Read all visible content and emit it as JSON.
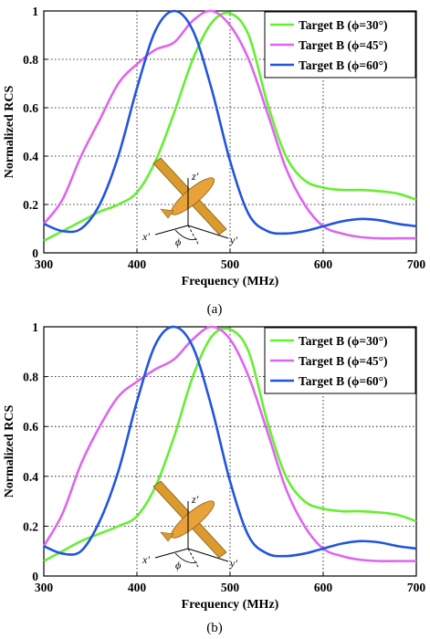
{
  "chart_data": [
    {
      "type": "line",
      "caption": "(a)",
      "xlabel": "Frequency (MHz)",
      "ylabel": "Normalized RCS",
      "xlim": [
        300,
        700
      ],
      "ylim": [
        0,
        1
      ],
      "xticks": [
        "300",
        "400",
        "500",
        "600",
        "700"
      ],
      "yticks": [
        "0",
        "0.2",
        "0.4",
        "0.6",
        "0.8",
        "1"
      ],
      "grid": "dotted",
      "legend": "top-right",
      "inset_labels": {
        "x": "x'",
        "y": "y'",
        "z": "z'",
        "angle": "ϕ"
      },
      "series": [
        {
          "name": "Target B (ϕ=30°)",
          "color": "#66ee33",
          "x": [
            300,
            320,
            340,
            360,
            380,
            400,
            420,
            440,
            460,
            480,
            500,
            520,
            540,
            560,
            580,
            600,
            620,
            640,
            660,
            680,
            700
          ],
          "y": [
            0.05,
            0.09,
            0.13,
            0.17,
            0.2,
            0.25,
            0.38,
            0.58,
            0.8,
            0.95,
            0.99,
            0.9,
            0.62,
            0.4,
            0.3,
            0.27,
            0.26,
            0.26,
            0.255,
            0.245,
            0.22
          ]
        },
        {
          "name": "Target B (ϕ=45°)",
          "color": "#dd66ee",
          "x": [
            300,
            320,
            340,
            360,
            380,
            400,
            420,
            440,
            460,
            480,
            500,
            520,
            540,
            560,
            580,
            600,
            620,
            640,
            660,
            680,
            700
          ],
          "y": [
            0.12,
            0.22,
            0.4,
            0.55,
            0.7,
            0.78,
            0.84,
            0.87,
            0.96,
            1.0,
            0.94,
            0.8,
            0.58,
            0.35,
            0.2,
            0.11,
            0.08,
            0.065,
            0.06,
            0.06,
            0.06
          ]
        },
        {
          "name": "Target B (ϕ=60°)",
          "color": "#2255dd",
          "x": [
            300,
            320,
            340,
            360,
            380,
            400,
            420,
            440,
            460,
            480,
            500,
            520,
            540,
            560,
            580,
            600,
            620,
            640,
            660,
            680,
            700
          ],
          "y": [
            0.12,
            0.09,
            0.1,
            0.2,
            0.4,
            0.68,
            0.92,
            1.0,
            0.92,
            0.68,
            0.38,
            0.16,
            0.09,
            0.08,
            0.09,
            0.11,
            0.13,
            0.14,
            0.135,
            0.12,
            0.11
          ]
        }
      ]
    },
    {
      "type": "line",
      "caption": "(b)",
      "xlabel": "Frequency (MHz)",
      "ylabel": "Normalized RCS",
      "xlim": [
        300,
        700
      ],
      "ylim": [
        0,
        1
      ],
      "xticks": [
        "300",
        "400",
        "500",
        "600",
        "700"
      ],
      "yticks": [
        "0",
        "0.2",
        "0.4",
        "0.6",
        "0.8",
        "1"
      ],
      "grid": "dotted",
      "legend": "top-right",
      "inset_labels": {
        "x": "x'",
        "y": "y'",
        "z": "z'",
        "angle": "ϕ"
      },
      "series": [
        {
          "name": "Target B (ϕ=30°)",
          "color": "#66ee33",
          "x": [
            300,
            320,
            340,
            360,
            380,
            400,
            420,
            440,
            460,
            480,
            500,
            520,
            540,
            560,
            580,
            600,
            620,
            640,
            660,
            680,
            700
          ],
          "y": [
            0.06,
            0.1,
            0.14,
            0.17,
            0.2,
            0.24,
            0.36,
            0.56,
            0.8,
            0.96,
            0.99,
            0.9,
            0.62,
            0.4,
            0.3,
            0.27,
            0.26,
            0.26,
            0.255,
            0.245,
            0.22
          ]
        },
        {
          "name": "Target B (ϕ=45°)",
          "color": "#dd66ee",
          "x": [
            300,
            320,
            340,
            360,
            380,
            400,
            420,
            440,
            460,
            480,
            500,
            520,
            540,
            560,
            580,
            600,
            620,
            640,
            660,
            680,
            700
          ],
          "y": [
            0.12,
            0.25,
            0.45,
            0.6,
            0.72,
            0.78,
            0.83,
            0.87,
            0.95,
            1.0,
            0.95,
            0.8,
            0.58,
            0.35,
            0.2,
            0.11,
            0.08,
            0.065,
            0.06,
            0.06,
            0.06
          ]
        },
        {
          "name": "Target B (ϕ=60°)",
          "color": "#2255dd",
          "x": [
            300,
            320,
            340,
            360,
            380,
            400,
            420,
            440,
            460,
            480,
            500,
            520,
            540,
            560,
            580,
            600,
            620,
            640,
            660,
            680,
            700
          ],
          "y": [
            0.12,
            0.09,
            0.1,
            0.22,
            0.42,
            0.7,
            0.93,
            1.0,
            0.92,
            0.68,
            0.38,
            0.16,
            0.09,
            0.08,
            0.09,
            0.11,
            0.13,
            0.14,
            0.135,
            0.12,
            0.11
          ]
        }
      ]
    }
  ]
}
